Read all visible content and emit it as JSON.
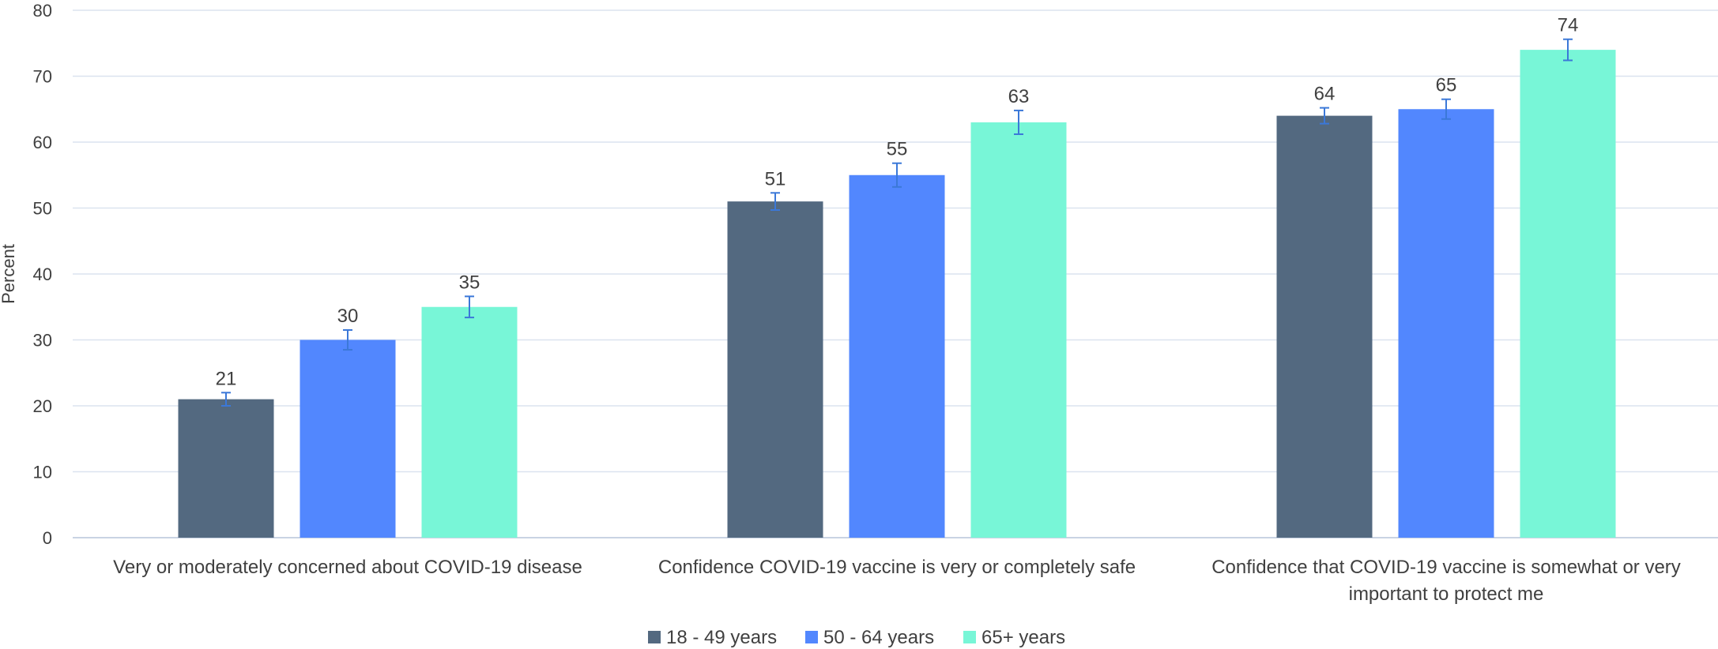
{
  "chart_data": {
    "type": "bar",
    "title": "",
    "xlabel": "",
    "ylabel": "Percent",
    "ylim": [
      0,
      80
    ],
    "yticks": [
      0,
      10,
      20,
      30,
      40,
      50,
      60,
      70,
      80
    ],
    "grid": true,
    "legend_position": "bottom",
    "categories": [
      [
        "Very or moderately concerned about COVID-19 disease"
      ],
      [
        "Confidence COVID-19 vaccine is very or completely safe"
      ],
      [
        "Confidence that COVID-19 vaccine is somewhat or very",
        "important to protect me"
      ]
    ],
    "series": [
      {
        "name": "18 - 49 years",
        "color": "#536980",
        "values": [
          21,
          51,
          64
        ],
        "error": [
          1.0,
          1.3,
          1.2
        ]
      },
      {
        "name": "50 - 64 years",
        "color": "#5287fe",
        "values": [
          30,
          55,
          65
        ],
        "error": [
          1.5,
          1.8,
          1.5
        ]
      },
      {
        "name": "65+ years",
        "color": "#78f6d7",
        "values": [
          35,
          63,
          74
        ],
        "error": [
          1.6,
          1.8,
          1.6
        ]
      }
    ],
    "errorbar_color": "#3b78d8"
  }
}
